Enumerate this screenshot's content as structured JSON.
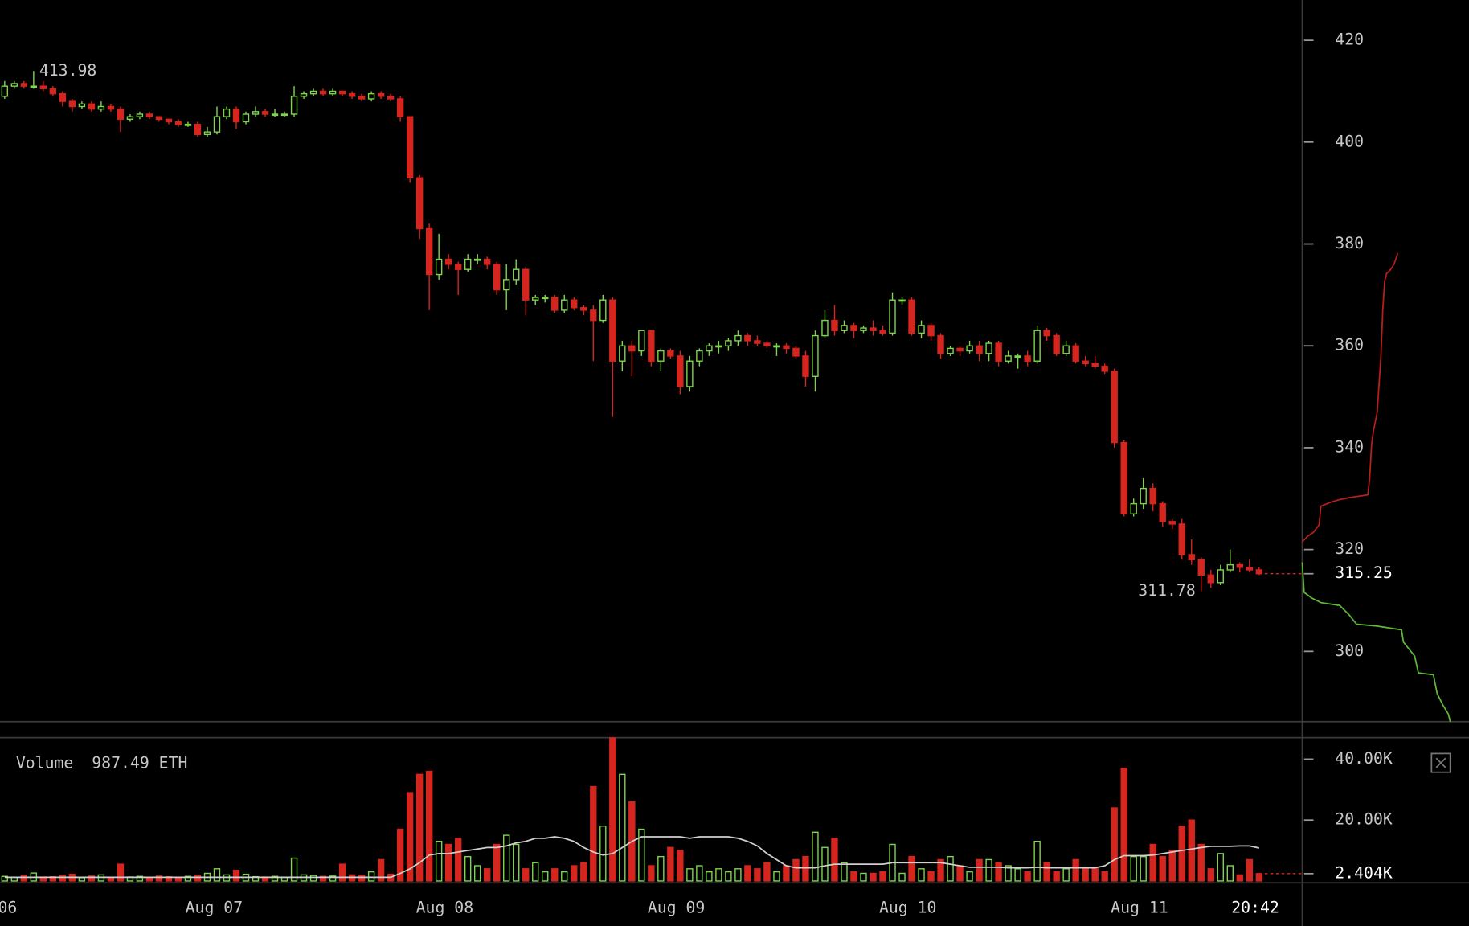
{
  "chart_data": {
    "type": "candlestick",
    "up_color": "#7ed64b",
    "down_color": "#d4261e",
    "xlim": [
      -0.485,
      134.47
    ],
    "xticks": [
      {
        "value": 0.3,
        "label": "06"
      },
      {
        "value": 21.7,
        "label": "Aug 07"
      },
      {
        "value": 45.6,
        "label": "Aug 08"
      },
      {
        "value": 69.6,
        "label": "Aug 09"
      },
      {
        "value": 93.6,
        "label": "Aug 10"
      },
      {
        "value": 117.6,
        "label": "Aug 11"
      },
      {
        "value": 129.6,
        "label": "20:42"
      }
    ],
    "ylim": [
      286.2,
      427.9
    ],
    "yticks": [
      300,
      320,
      340,
      360,
      380,
      400,
      420
    ],
    "candles": [
      [
        409,
        412,
        408.5,
        411
      ],
      [
        411,
        412,
        410.5,
        411.5
      ],
      [
        411.5,
        412,
        410.5,
        411
      ],
      [
        411,
        413.98,
        410.5,
        411
      ],
      [
        411,
        412,
        410,
        410.5
      ],
      [
        410.5,
        411,
        409,
        409.5
      ],
      [
        409.5,
        410,
        407,
        408
      ],
      [
        408,
        408.5,
        406,
        407
      ],
      [
        407,
        408,
        406.5,
        407.5
      ],
      [
        407.5,
        408,
        406,
        406.5
      ],
      [
        406.5,
        408,
        406,
        407
      ],
      [
        407,
        407.5,
        406,
        406.5
      ],
      [
        406.5,
        407,
        402,
        404.5
      ],
      [
        404.5,
        405.5,
        404,
        405
      ],
      [
        405,
        406,
        404.5,
        405.5
      ],
      [
        405.5,
        406,
        404.5,
        405
      ],
      [
        405,
        405,
        404,
        404.5
      ],
      [
        404.5,
        404.5,
        403.5,
        404
      ],
      [
        404,
        404.5,
        403,
        403.5
      ],
      [
        403.5,
        404,
        403,
        403.5
      ],
      [
        403.5,
        404,
        401,
        401.5
      ],
      [
        401.5,
        403,
        401,
        402
      ],
      [
        402,
        407,
        401.5,
        405
      ],
      [
        405,
        407,
        404.5,
        406.5
      ],
      [
        406.5,
        407,
        402.5,
        404
      ],
      [
        404,
        406,
        403.5,
        405.5
      ],
      [
        405.5,
        407,
        405,
        406
      ],
      [
        406,
        406.5,
        405,
        405.5
      ],
      [
        405.5,
        406.5,
        405,
        405.5
      ],
      [
        405.5,
        406,
        405,
        405.5
      ],
      [
        405.5,
        411,
        405,
        409
      ],
      [
        409,
        410,
        408.5,
        409.5
      ],
      [
        409.5,
        410.5,
        409,
        410
      ],
      [
        410,
        410.5,
        409,
        409.5
      ],
      [
        409.5,
        410.5,
        409,
        410
      ],
      [
        410,
        410,
        409,
        409.5
      ],
      [
        409.5,
        410,
        408.5,
        409
      ],
      [
        409,
        409.5,
        408,
        408.5
      ],
      [
        408.5,
        410,
        408,
        409.5
      ],
      [
        409.5,
        410,
        408.5,
        409
      ],
      [
        409,
        409.5,
        408,
        408.5
      ],
      [
        408.5,
        409,
        404,
        405
      ],
      [
        405,
        405,
        392,
        393
      ],
      [
        393,
        393.5,
        381,
        383
      ],
      [
        383,
        384,
        367,
        374
      ],
      [
        374,
        382,
        373,
        377
      ],
      [
        377,
        378,
        375,
        376
      ],
      [
        376,
        376.5,
        370,
        375
      ],
      [
        375,
        378,
        374.5,
        377
      ],
      [
        377,
        378,
        376,
        377
      ],
      [
        377,
        377.5,
        375,
        376
      ],
      [
        376,
        376.5,
        370,
        371
      ],
      [
        371,
        376,
        367,
        373
      ],
      [
        373,
        377,
        372,
        375
      ],
      [
        375,
        375.5,
        366,
        369
      ],
      [
        369,
        370,
        368,
        369.5
      ],
      [
        369.5,
        370,
        368.5,
        369.5
      ],
      [
        369.5,
        370,
        366.5,
        367
      ],
      [
        367,
        370,
        366.5,
        369
      ],
      [
        369,
        369.5,
        367,
        367.5
      ],
      [
        367.5,
        368,
        366,
        367
      ],
      [
        367,
        368,
        357,
        365
      ],
      [
        365,
        370,
        364.5,
        369
      ],
      [
        369,
        369.5,
        346,
        357
      ],
      [
        357,
        361,
        355,
        360
      ],
      [
        360,
        361,
        354,
        359
      ],
      [
        359,
        363,
        358,
        363
      ],
      [
        363,
        363,
        356,
        357
      ],
      [
        357,
        359.5,
        355,
        359
      ],
      [
        359,
        359.5,
        357.5,
        358
      ],
      [
        358,
        359,
        350.5,
        352
      ],
      [
        352,
        358,
        351,
        357
      ],
      [
        357,
        359.5,
        356,
        359
      ],
      [
        359,
        360.5,
        358,
        360
      ],
      [
        360,
        361,
        358.5,
        360
      ],
      [
        360,
        361.5,
        359,
        361
      ],
      [
        361,
        363,
        360,
        362
      ],
      [
        362,
        362.5,
        360,
        361
      ],
      [
        361,
        362,
        360,
        360.5
      ],
      [
        360.5,
        361,
        359.5,
        360
      ],
      [
        360,
        360.5,
        358,
        360
      ],
      [
        360,
        360.5,
        358.5,
        359.5
      ],
      [
        359.5,
        360,
        357.5,
        358
      ],
      [
        358,
        359,
        352,
        354
      ],
      [
        354,
        363,
        351,
        362
      ],
      [
        362,
        367,
        361.5,
        365
      ],
      [
        365,
        368,
        362,
        363
      ],
      [
        363,
        365,
        362.5,
        364
      ],
      [
        364,
        364.5,
        361.5,
        363
      ],
      [
        363,
        364,
        362.5,
        363.5
      ],
      [
        363.5,
        365,
        362,
        363
      ],
      [
        363,
        364,
        362,
        362.5
      ],
      [
        362.5,
        370.5,
        362,
        369
      ],
      [
        369,
        369.5,
        368,
        369
      ],
      [
        369,
        369.5,
        362,
        362.5
      ],
      [
        362.5,
        365,
        361.5,
        364
      ],
      [
        364,
        364.5,
        361,
        362
      ],
      [
        362,
        362.5,
        357.5,
        358.5
      ],
      [
        358.5,
        360,
        358,
        359.5
      ],
      [
        359.5,
        360,
        358,
        359
      ],
      [
        359,
        361,
        358.5,
        360
      ],
      [
        360,
        361,
        357,
        358.5
      ],
      [
        358.5,
        361,
        357,
        360.5
      ],
      [
        360.5,
        361,
        356,
        357
      ],
      [
        357,
        359,
        356.5,
        358
      ],
      [
        358,
        358.5,
        355.5,
        358
      ],
      [
        358,
        359,
        356,
        357
      ],
      [
        357,
        364,
        356.5,
        363
      ],
      [
        363,
        363.5,
        361,
        362
      ],
      [
        362,
        362.5,
        358,
        358.5
      ],
      [
        358.5,
        361,
        358,
        360
      ],
      [
        360,
        360.5,
        356.5,
        357
      ],
      [
        357,
        358,
        356,
        356.5
      ],
      [
        356.5,
        358,
        355.5,
        356
      ],
      [
        356,
        356.5,
        354.5,
        355
      ],
      [
        355,
        355.5,
        340,
        341
      ],
      [
        341,
        341.5,
        326.5,
        327
      ],
      [
        327,
        330,
        326.5,
        329
      ],
      [
        329,
        334,
        328,
        332
      ],
      [
        332,
        333,
        327.5,
        329
      ],
      [
        329,
        329.5,
        324.5,
        325.5
      ],
      [
        325.5,
        326,
        324,
        325
      ],
      [
        325,
        326,
        318,
        319
      ],
      [
        319,
        322,
        317,
        318
      ],
      [
        318,
        318.5,
        311.78,
        315
      ],
      [
        315,
        316,
        312.5,
        313.5
      ],
      [
        313.5,
        317,
        313,
        316
      ],
      [
        316,
        320,
        315.5,
        317
      ],
      [
        317,
        317.5,
        315.5,
        316.5
      ],
      [
        316.5,
        318,
        315.5,
        316
      ],
      [
        316,
        316.5,
        315,
        315.25
      ]
    ],
    "volume": {
      "label": "Volume",
      "amount": "987.49 ETH",
      "ma_color": "#d0d0d0",
      "ylim": [
        0,
        47.08
      ],
      "yticks": [
        {
          "value": 40,
          "label": "40.00K"
        },
        {
          "value": 20,
          "label": "20.00K"
        }
      ],
      "current": {
        "value": 2.404,
        "label": "2.404K"
      },
      "values": [
        1.5,
        1.2,
        1.8,
        2.6,
        1.3,
        1.4,
        1.8,
        2.2,
        1.1,
        1.6,
        2.0,
        1.2,
        5.5,
        1.3,
        1.5,
        1.2,
        1.6,
        1.4,
        1.2,
        1.5,
        1.8,
        2.5,
        4.0,
        2.0,
        3.5,
        2.2,
        1.4,
        1.3,
        1.5,
        1.2,
        7.5,
        2.0,
        1.8,
        1.5,
        1.6,
        5.5,
        2.0,
        1.8,
        3.0,
        7.0,
        2.2,
        17,
        29,
        35,
        36,
        13,
        12,
        14,
        8,
        5,
        4,
        12,
        15,
        12,
        4,
        6,
        3,
        4,
        3,
        5,
        6,
        31,
        18,
        47,
        35,
        26,
        17,
        5,
        8,
        11,
        10,
        4,
        5,
        3,
        4,
        3,
        4,
        5,
        4,
        6,
        3,
        5,
        7,
        8,
        16,
        11,
        14,
        6,
        3,
        2.5,
        2.5,
        3,
        12,
        2.5,
        8,
        4,
        3,
        7,
        8,
        5,
        3,
        7,
        7,
        6,
        5,
        4,
        3,
        13,
        6,
        3,
        4,
        7,
        4,
        4,
        3,
        24,
        37,
        8,
        8,
        12,
        8,
        10,
        18,
        20,
        12,
        4,
        9,
        5,
        2,
        7,
        2.404
      ],
      "ma": [
        1.2,
        1.2,
        1.2,
        1.2,
        1.2,
        1.2,
        1.2,
        1.2,
        1.2,
        1.2,
        1.2,
        1.2,
        1.2,
        1.2,
        1.2,
        1.2,
        1.2,
        1.2,
        1.2,
        1.2,
        1.2,
        1.2,
        1.2,
        1.2,
        1.2,
        1.2,
        1.2,
        1.2,
        1.2,
        1.2,
        1.2,
        1.2,
        1.2,
        1.2,
        1.2,
        1.2,
        1.2,
        1.2,
        1.2,
        1.2,
        1.2,
        2.5,
        4,
        6,
        8.5,
        9,
        9,
        9.5,
        10,
        10.5,
        11,
        11,
        11.5,
        12.5,
        13,
        14,
        14,
        14.5,
        14,
        13,
        11,
        9.5,
        8.5,
        9,
        11,
        13,
        14.5,
        14.5,
        14.5,
        14.5,
        14.5,
        14,
        14.5,
        14.5,
        14.5,
        14.5,
        14,
        13,
        11.5,
        9,
        7,
        5,
        4.3,
        4.3,
        4.3,
        5,
        5.5,
        5.5,
        5.5,
        5.5,
        5.5,
        5.5,
        6,
        6,
        6,
        6,
        6,
        6,
        5.5,
        5,
        4.5,
        4.5,
        4.5,
        4.5,
        4.3,
        4.3,
        4.3,
        4.5,
        4.3,
        4.3,
        4.3,
        4.3,
        4.3,
        4.3,
        5,
        7,
        8.3,
        8.3,
        8.3,
        8.5,
        9,
        9.5,
        10,
        10.5,
        11,
        11.4,
        11.4,
        11.4,
        11.5,
        11.5,
        10.8
      ]
    }
  }
}
